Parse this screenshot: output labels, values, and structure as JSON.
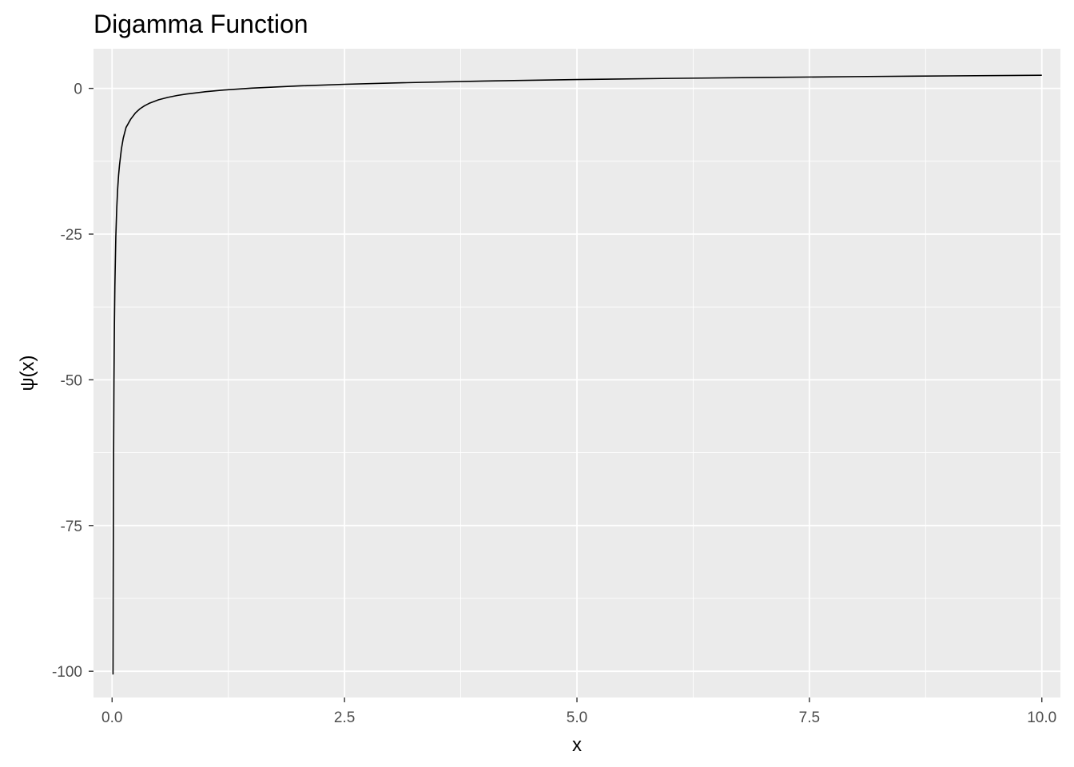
{
  "chart_data": {
    "type": "line",
    "title": "Digamma Function",
    "xlabel": "x",
    "ylabel": "ψ(x)",
    "xlim": [
      -0.2,
      10.2
    ],
    "ylim": [
      -104.5,
      6.8
    ],
    "x_ticks": [
      {
        "value": 0,
        "label": "0.0"
      },
      {
        "value": 2.5,
        "label": "2.5"
      },
      {
        "value": 5,
        "label": "5.0"
      },
      {
        "value": 7.5,
        "label": "7.5"
      },
      {
        "value": 10,
        "label": "10.0"
      }
    ],
    "y_ticks": [
      {
        "value": 0,
        "label": "0"
      },
      {
        "value": -25,
        "label": "-25"
      },
      {
        "value": -50,
        "label": "-50"
      },
      {
        "value": -75,
        "label": "-75"
      },
      {
        "value": -100,
        "label": "-100"
      }
    ],
    "x_minor": [
      1.25,
      3.75,
      6.25,
      8.75
    ],
    "y_minor": [
      -12.5,
      -37.5,
      -62.5,
      -87.5
    ],
    "grid": true,
    "legend": "none",
    "colors": {
      "panel": "#ebebeb",
      "grid": "#ffffff",
      "line": "#000000",
      "tick_text": "#4d4d4d",
      "tick_mark": "#333333"
    },
    "series": [
      {
        "x": [
          0.01,
          0.012,
          0.015,
          0.02,
          0.025,
          0.03,
          0.04,
          0.05,
          0.06,
          0.07,
          0.08,
          0.1,
          0.12,
          0.15,
          0.2,
          0.25,
          0.3,
          0.35,
          0.4,
          0.5,
          0.6,
          0.7,
          0.8,
          1.0,
          1.2,
          1.5,
          2.0,
          2.5,
          3.0,
          4.0,
          5.0,
          6.0,
          7.0,
          8.0,
          9.0,
          10.0
        ],
        "y": [
          -100.56,
          -83.89,
          -67.2,
          -50.52,
          -40.52,
          -33.87,
          -25.52,
          -20.56,
          -17.25,
          -14.89,
          -13.12,
          -10.42,
          -8.55,
          -6.71,
          -5.29,
          -4.23,
          -3.5,
          -2.97,
          -2.56,
          -1.96,
          -1.54,
          -1.22,
          -0.97,
          -0.58,
          -0.29,
          0.04,
          0.42,
          0.7,
          0.92,
          1.26,
          1.51,
          1.71,
          1.87,
          2.02,
          2.14,
          2.25
        ]
      }
    ]
  }
}
